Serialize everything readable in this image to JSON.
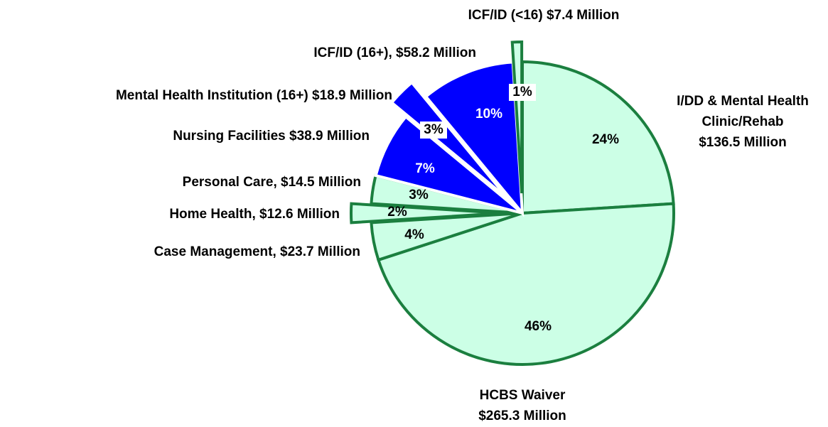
{
  "chart_data": {
    "type": "pie",
    "categories": [
      "I/DD & Mental Health\nClinic/Rehab\n$136.5 Million",
      "HCBS Waiver\n$265.3 Million",
      "Case Management, $23.7 Million",
      "Home Health, $12.6 Million",
      "Personal Care, $14.5 Million",
      "Nursing Facilities $38.9 Million",
      "Mental Health Institution (16+) $18.9 Million",
      "ICF/ID (16+), $58.2 Million",
      "ICF/ID (<16) $7.4 Million"
    ],
    "values": [
      24,
      46,
      4,
      2,
      3,
      7,
      3,
      10,
      1
    ],
    "value_labels": [
      "24%",
      "46%",
      "4%",
      "2%",
      "3%",
      "7%",
      "3%",
      "10%",
      "1%"
    ],
    "colors": [
      "#ccffe6",
      "#ccffe6",
      "#ccffe6",
      "#ccffe6",
      "#ccffe6",
      "#0000ff",
      "#0000ff",
      "#0000ff",
      "#ccffe6"
    ],
    "edge_colors": [
      "#1b7f3f",
      "#1b7f3f",
      "#1b7f3f",
      "#1b7f3f",
      "#1b7f3f",
      "#ffffff",
      "#ffffff",
      "#ffffff",
      "#1b7f3f"
    ],
    "exploded": [
      false,
      false,
      false,
      true,
      false,
      false,
      true,
      false,
      true
    ]
  }
}
